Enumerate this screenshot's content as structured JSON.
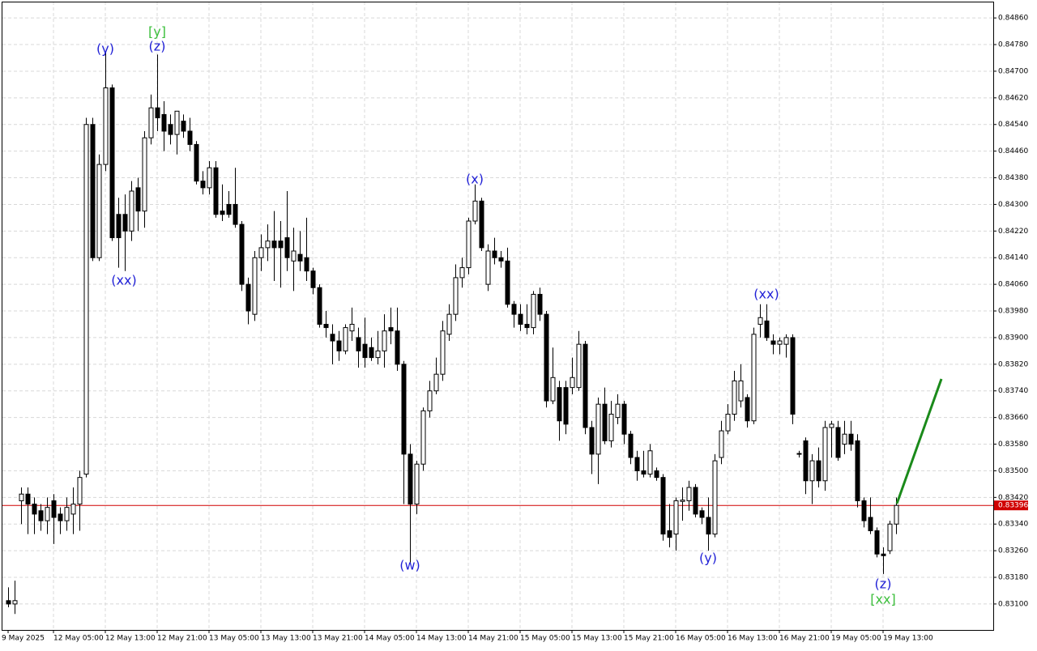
{
  "chart_data": {
    "type": "candlestick",
    "ylim": [
      0.83022,
      0.84909
    ],
    "yticks": [
      {
        "value": 0.8486,
        "label": "0.84860"
      },
      {
        "value": 0.8478,
        "label": "0.84780"
      },
      {
        "value": 0.847,
        "label": "0.84700"
      },
      {
        "value": 0.8462,
        "label": "0.84620"
      },
      {
        "value": 0.8454,
        "label": "0.84540"
      },
      {
        "value": 0.8446,
        "label": "0.84460"
      },
      {
        "value": 0.8438,
        "label": "0.84380"
      },
      {
        "value": 0.843,
        "label": "0.84300"
      },
      {
        "value": 0.8422,
        "label": "0.84220"
      },
      {
        "value": 0.8414,
        "label": "0.84140"
      },
      {
        "value": 0.8406,
        "label": "0.84060"
      },
      {
        "value": 0.8398,
        "label": "0.83980"
      },
      {
        "value": 0.839,
        "label": "0.83900"
      },
      {
        "value": 0.8382,
        "label": "0.83820"
      },
      {
        "value": 0.8374,
        "label": "0.83740"
      },
      {
        "value": 0.8366,
        "label": "0.83660"
      },
      {
        "value": 0.8358,
        "label": "0.83580"
      },
      {
        "value": 0.835,
        "label": "0.83500"
      },
      {
        "value": 0.8342,
        "label": "0.83420"
      },
      {
        "value": 0.8334,
        "label": "0.83340"
      },
      {
        "value": 0.8326,
        "label": "0.83260"
      },
      {
        "value": 0.8318,
        "label": "0.83180"
      },
      {
        "value": 0.831,
        "label": "0.83100"
      }
    ],
    "grid": true,
    "up_color": "#ffffff",
    "down_color": "#000000",
    "last_price": 0.83396,
    "last_price_color": "#d00000",
    "categories": [
      "9 May 2025",
      null,
      null,
      null,
      null,
      null,
      null,
      "12 May 05:00",
      null,
      null,
      null,
      null,
      null,
      null,
      null,
      "12 May 13:00",
      null,
      null,
      null,
      null,
      null,
      null,
      null,
      "12 May 21:00",
      null,
      null,
      null,
      null,
      null,
      null,
      null,
      "13 May 05:00",
      null,
      null,
      null,
      null,
      null,
      null,
      null,
      "13 May 13:00",
      null,
      null,
      null,
      null,
      null,
      null,
      null,
      "13 May 21:00",
      null,
      null,
      null,
      null,
      null,
      null,
      null,
      "14 May 05:00",
      null,
      null,
      null,
      null,
      null,
      null,
      null,
      "14 May 13:00",
      null,
      null,
      null,
      null,
      null,
      null,
      null,
      "14 May 21:00",
      null,
      null,
      null,
      null,
      null,
      null,
      null,
      "15 May 05:00",
      null,
      null,
      null,
      null,
      null,
      null,
      null,
      "15 May 13:00",
      null,
      null,
      null,
      null,
      null,
      null,
      null,
      "15 May 21:00",
      null,
      null,
      null,
      null,
      null,
      null,
      null,
      "16 May 05:00",
      null,
      null,
      null,
      null,
      null,
      null,
      null,
      "16 May 13:00",
      null,
      null,
      null,
      null,
      null,
      null,
      null,
      "16 May 21:00",
      null,
      null,
      null,
      null,
      null,
      null,
      null,
      "19 May 05:00",
      null,
      null,
      null,
      null,
      null,
      null,
      null,
      "19 May 13:00",
      null,
      null
    ],
    "open": [
      0.8311,
      0.831,
      0.8341,
      0.8343,
      0.834,
      0.8338,
      0.8335,
      0.8341,
      0.8337,
      0.8335,
      0.8337,
      0.834,
      0.8349,
      0.8454,
      0.8414,
      0.8442,
      0.8465,
      0.8427,
      0.8427,
      0.8422,
      0.8435,
      0.8428,
      0.845,
      0.8459,
      0.8457,
      0.8454,
      0.8451,
      0.8455,
      0.8452,
      0.8448,
      0.8437,
      0.8435,
      0.8441,
      0.8428,
      0.843,
      0.843,
      0.8424,
      0.8406,
      0.8397,
      0.8414,
      0.8417,
      0.8419,
      0.8419,
      0.842,
      0.8413,
      0.8415,
      0.8414,
      0.841,
      0.8405,
      0.8394,
      0.8391,
      0.8389,
      0.8386,
      0.8392,
      0.839,
      0.8388,
      0.8387,
      0.8384,
      0.8386,
      0.8393,
      0.8392,
      0.8382,
      0.8355,
      0.834,
      0.8352,
      0.8368,
      0.8374,
      0.8379,
      0.8391,
      0.8397,
      0.8408,
      0.8411,
      0.8425,
      0.8431,
      0.8406,
      0.8416,
      0.8414,
      0.8413,
      0.84,
      0.8397,
      0.8394,
      0.8393,
      0.8403,
      0.8397,
      0.8371,
      0.8375,
      0.8375,
      0.8375,
      0.8375,
      0.8388,
      0.8363,
      0.8355,
      0.837,
      0.8359,
      0.8366,
      0.837,
      0.8361,
      0.8354,
      0.835,
      0.8349,
      0.835,
      0.8348,
      0.8332,
      0.8331,
      0.83408,
      0.8341,
      0.8345,
      0.8338,
      0.8336,
      0.8331,
      0.8354,
      0.8362,
      0.8367,
      0.8371,
      0.8372,
      0.8365,
      0.8394,
      0.8395,
      0.8389,
      0.8388,
      0.8388,
      0.839,
      0.83552,
      0.8359,
      0.8347,
      0.8353,
      0.8347,
      0.8363,
      0.8363,
      0.8358,
      0.8361,
      0.8359,
      0.8341,
      0.8336,
      0.8332,
      0.8325,
      0.8326,
      0.8334
    ],
    "high": [
      0.8315,
      0.8317,
      0.8345,
      0.8345,
      0.8342,
      0.834,
      0.8342,
      0.8343,
      0.8339,
      0.8342,
      0.8345,
      0.835,
      0.8456,
      0.8456,
      0.8445,
      0.8476,
      0.8466,
      0.8432,
      0.8433,
      0.8437,
      0.8438,
      0.8452,
      0.8463,
      0.8475,
      0.8461,
      0.8457,
      0.8458,
      0.8457,
      0.8456,
      0.8449,
      0.844,
      0.8443,
      0.8443,
      0.8436,
      0.8434,
      0.8441,
      0.8425,
      0.8408,
      0.8416,
      0.8421,
      0.8424,
      0.8428,
      0.8425,
      0.8434,
      0.8423,
      0.8422,
      0.8426,
      0.8411,
      0.8406,
      0.8398,
      0.8394,
      0.8392,
      0.8394,
      0.8399,
      0.8393,
      0.8396,
      0.839,
      0.8392,
      0.8397,
      0.8399,
      0.8399,
      0.8383,
      0.8358,
      0.8353,
      0.8369,
      0.8377,
      0.8384,
      0.8395,
      0.84,
      0.8412,
      0.8414,
      0.8426,
      0.8436,
      0.8432,
      0.8418,
      0.842,
      0.8416,
      0.8417,
      0.8401,
      0.84,
      0.84,
      0.8404,
      0.8405,
      0.8398,
      0.8387,
      0.8377,
      0.8377,
      0.8384,
      0.8392,
      0.8389,
      0.8365,
      0.8372,
      0.8375,
      0.8371,
      0.8373,
      0.8371,
      0.8362,
      0.8356,
      0.8356,
      0.8358,
      0.8351,
      0.8349,
      0.834,
      0.8342,
      0.8345,
      0.8347,
      0.8346,
      0.8339,
      0.8342,
      0.8355,
      0.8365,
      0.837,
      0.838,
      0.8382,
      0.8373,
      0.8393,
      0.84,
      0.84,
      0.8391,
      0.839,
      0.8391,
      0.8391,
      0.8356,
      0.836,
      0.8355,
      0.8357,
      0.8365,
      0.8365,
      0.8365,
      0.8365,
      0.8365,
      0.8361,
      0.8342,
      0.8342,
      0.8333,
      0.8327,
      0.8335,
      0.8342
    ],
    "low": [
      0.8309,
      0.8307,
      0.8334,
      0.8331,
      0.8331,
      0.8332,
      0.8331,
      0.8328,
      0.8331,
      0.8332,
      0.8331,
      0.8332,
      0.8348,
      0.8413,
      0.8413,
      0.844,
      0.8419,
      0.8411,
      0.841,
      0.8419,
      0.8422,
      0.8423,
      0.8448,
      0.8452,
      0.8446,
      0.8448,
      0.8445,
      0.845,
      0.8446,
      0.8436,
      0.8433,
      0.8433,
      0.8426,
      0.8425,
      0.8426,
      0.8423,
      0.8404,
      0.8394,
      0.8395,
      0.841,
      0.8413,
      0.8407,
      0.8405,
      0.841,
      0.8404,
      0.841,
      0.8407,
      0.8403,
      0.8393,
      0.839,
      0.8382,
      0.8383,
      0.8385,
      0.8389,
      0.8381,
      0.8381,
      0.8383,
      0.8382,
      0.8381,
      0.8388,
      0.838,
      0.834,
      0.8322,
      0.8337,
      0.835,
      0.8366,
      0.8373,
      0.8377,
      0.8389,
      0.8395,
      0.8405,
      0.8409,
      0.8424,
      0.8416,
      0.8404,
      0.8412,
      0.8411,
      0.8399,
      0.8393,
      0.8392,
      0.8391,
      0.8391,
      0.8395,
      0.8369,
      0.837,
      0.8359,
      0.8361,
      0.8373,
      0.8374,
      0.8361,
      0.8349,
      0.8346,
      0.8358,
      0.8357,
      0.8364,
      0.8358,
      0.8352,
      0.8347,
      0.8348,
      0.8348,
      0.8347,
      0.8329,
      0.8327,
      0.8326,
      0.8335,
      0.8338,
      0.8336,
      0.8334,
      0.8326,
      0.833,
      0.8352,
      0.8361,
      0.8365,
      0.8369,
      0.8363,
      0.8364,
      0.839,
      0.8389,
      0.8385,
      0.8385,
      0.8384,
      0.8364,
      0.8354,
      0.8343,
      0.834,
      0.8345,
      0.8344,
      0.8354,
      0.8353,
      0.8355,
      0.8356,
      0.8339,
      0.8333,
      0.8331,
      0.8324,
      0.8319,
      0.8325,
      0.8331
    ],
    "close": [
      0.831,
      0.8311,
      0.8343,
      0.834,
      0.8337,
      0.8335,
      0.8339,
      0.8336,
      0.8335,
      0.8339,
      0.834,
      0.8348,
      0.8454,
      0.8414,
      0.8442,
      0.8465,
      0.842,
      0.842,
      0.8422,
      0.8434,
      0.8428,
      0.845,
      0.8459,
      0.8456,
      0.8452,
      0.8451,
      0.8458,
      0.8452,
      0.8448,
      0.8437,
      0.8435,
      0.8441,
      0.8427,
      0.8427,
      0.8427,
      0.8424,
      0.8406,
      0.8398,
      0.8414,
      0.8417,
      0.8419,
      0.8417,
      0.8417,
      0.8414,
      0.8416,
      0.8413,
      0.841,
      0.8405,
      0.8394,
      0.8393,
      0.8389,
      0.8386,
      0.8393,
      0.8394,
      0.8386,
      0.8384,
      0.8384,
      0.8386,
      0.8392,
      0.8392,
      0.8382,
      0.8355,
      0.834,
      0.8352,
      0.8368,
      0.8374,
      0.8379,
      0.8392,
      0.8397,
      0.8408,
      0.8411,
      0.8425,
      0.8431,
      0.8417,
      0.8416,
      0.8414,
      0.8413,
      0.84,
      0.8397,
      0.8394,
      0.8393,
      0.8403,
      0.8397,
      0.8371,
      0.8378,
      0.8365,
      0.8364,
      0.8378,
      0.8388,
      0.8363,
      0.8355,
      0.837,
      0.8359,
      0.8367,
      0.837,
      0.8361,
      0.8354,
      0.835,
      0.8349,
      0.8356,
      0.8348,
      0.8331,
      0.833,
      0.8341,
      0.83412,
      0.8345,
      0.8337,
      0.8336,
      0.8331,
      0.8353,
      0.8362,
      0.8367,
      0.8377,
      0.8377,
      0.8365,
      0.8391,
      0.8396,
      0.839,
      0.8388,
      0.8389,
      0.839,
      0.8367,
      0.8355,
      0.8347,
      0.8353,
      0.8347,
      0.8363,
      0.8364,
      0.8354,
      0.8361,
      0.8358,
      0.8341,
      0.8335,
      0.8332,
      0.8325,
      0.83245,
      0.8334,
      0.83396
    ],
    "annotations": [
      {
        "text": "[y]",
        "color": "#3cbf3c"
      },
      {
        "text": "(y)",
        "color": "#1f1fd6"
      },
      {
        "text": "(z)",
        "color": "#1f1fd6"
      },
      {
        "text": "(xx)",
        "color": "#1f1fd6"
      },
      {
        "text": "(x)",
        "color": "#1f1fd6"
      },
      {
        "text": "(w)",
        "color": "#1f1fd6"
      },
      {
        "text": "(xx)",
        "color": "#1f1fd6"
      },
      {
        "text": "(y)",
        "color": "#1f1fd6"
      },
      {
        "text": "(z)",
        "color": "#1f1fd6"
      },
      {
        "text": "[xx]",
        "color": "#3cbf3c"
      }
    ]
  }
}
